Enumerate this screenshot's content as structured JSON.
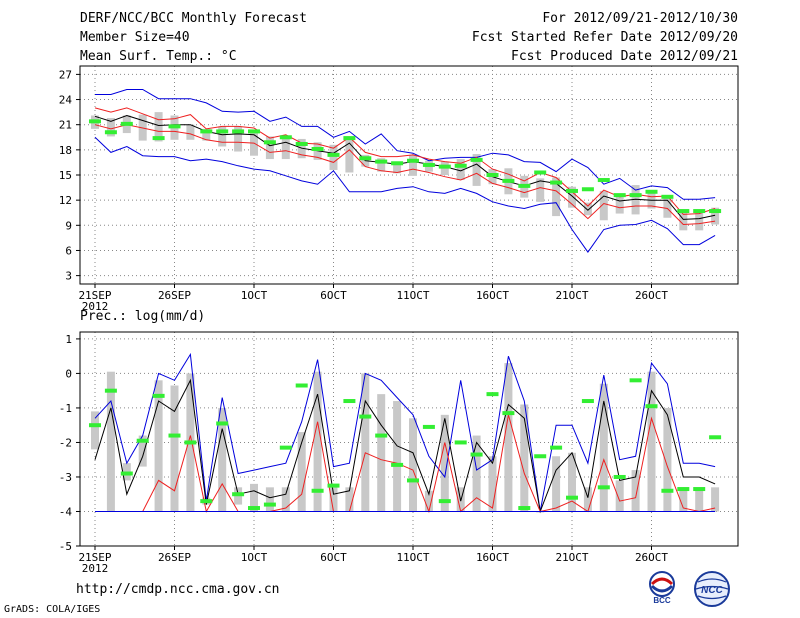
{
  "header": {
    "title": "DERF/NCC/BCC Monthly Forecast",
    "member_size": "Member Size=40",
    "variable": "Mean Surf. Temp.: °C",
    "period": "For 2012/09/21-2012/10/30",
    "start_date": "Fcst Started Refer Date 2012/09/20",
    "produced_date": "Fcst Produced Date 2012/09/21"
  },
  "footer": {
    "url": "http://cmdp.ncc.cma.gov.cn",
    "credit": "GrADS: COLA/IGES",
    "logo_bcc": "BCC",
    "logo_ncc": "NCC"
  },
  "colors": {
    "bar": "#c8c8c8",
    "envelope": "#0000dd",
    "spread": "#ee2020",
    "mean": "#000000",
    "obs": "#33ee33",
    "grid": "#888888"
  },
  "chart_data": [
    {
      "type": "line",
      "title": "Mean Surf. Temp.: °C",
      "x_ticks": [
        "21SEP",
        "26SEP",
        "1OCT",
        "6OCT",
        "11OCT",
        "16OCT",
        "21OCT",
        "26OCT"
      ],
      "x_year": "2012",
      "y_ticks": [
        3,
        6,
        9,
        12,
        15,
        18,
        21,
        24,
        27
      ],
      "ylim": [
        2,
        28
      ],
      "days": 40,
      "series": [
        {
          "name": "max",
          "values": [
            24.6,
            24.6,
            25.2,
            25.2,
            24.1,
            24.1,
            24.1,
            23.6,
            22.6,
            22.5,
            22.6,
            21.4,
            21.9,
            20.8,
            20.8,
            19.5,
            20.2,
            18.7,
            19.9,
            17.9,
            17.6,
            16.7,
            17.0,
            17.1,
            17.1,
            17.6,
            17.4,
            16.6,
            16.5,
            15.4,
            16.9,
            15.9,
            13.9,
            14.6,
            13.2,
            13.7,
            13.5,
            12.1,
            12.1,
            12.3
          ]
        },
        {
          "name": "p80",
          "values": [
            23.0,
            22.5,
            23.0,
            22.3,
            21.6,
            21.7,
            22.2,
            20.5,
            20.8,
            20.8,
            20.6,
            19.4,
            19.8,
            18.8,
            18.7,
            18.2,
            19.5,
            17.7,
            17.2,
            17.2,
            17.4,
            16.9,
            16.6,
            16.4,
            17.1,
            15.7,
            15.1,
            14.3,
            15.3,
            14.7,
            13.0,
            11.3,
            13.2,
            12.4,
            12.7,
            12.4,
            12.5,
            10.3,
            10.4,
            11.0
          ]
        },
        {
          "name": "mean",
          "values": [
            22.0,
            21.4,
            22.1,
            21.5,
            20.9,
            21.0,
            21.0,
            20.2,
            19.8,
            19.9,
            19.8,
            18.5,
            18.9,
            18.2,
            17.9,
            17.6,
            18.8,
            16.7,
            16.5,
            16.3,
            16.6,
            16.3,
            16.0,
            15.5,
            16.3,
            14.8,
            14.2,
            13.7,
            14.3,
            14.0,
            12.5,
            10.8,
            12.5,
            11.9,
            12.1,
            12.0,
            12.0,
            9.7,
            9.8,
            10.2
          ]
        },
        {
          "name": "p20",
          "values": [
            21.0,
            20.5,
            21.0,
            20.6,
            20.2,
            20.2,
            19.9,
            19.2,
            18.9,
            18.9,
            18.8,
            17.7,
            17.9,
            17.4,
            17.1,
            16.5,
            18.0,
            16.0,
            15.5,
            15.3,
            15.7,
            15.3,
            14.8,
            14.4,
            15.2,
            14.0,
            13.5,
            12.9,
            13.5,
            13.1,
            11.5,
            9.8,
            11.6,
            11.1,
            11.3,
            11.3,
            11.0,
            9.1,
            9.2,
            9.5
          ]
        },
        {
          "name": "min",
          "values": [
            19.5,
            17.7,
            18.4,
            17.3,
            17.2,
            17.2,
            16.7,
            16.9,
            16.6,
            16.1,
            15.7,
            15.5,
            14.9,
            14.3,
            13.9,
            15.5,
            13.0,
            13.0,
            13.0,
            13.4,
            13.6,
            13.0,
            12.8,
            13.4,
            12.8,
            11.8,
            11.3,
            11.0,
            11.5,
            11.7,
            8.5,
            5.8,
            8.5,
            9.0,
            9.1,
            9.6,
            8.6,
            6.7,
            6.7,
            7.8
          ]
        }
      ],
      "bars_low": [
        20.5,
        19.6,
        20.0,
        19.1,
        19.0,
        19.2,
        19.2,
        19.1,
        18.4,
        17.8,
        17.3,
        16.9,
        16.9,
        17.0,
        16.8,
        15.6,
        15.3,
        16.0,
        15.4,
        15.2,
        14.9,
        15.4,
        15.0,
        14.4,
        13.7,
        13.9,
        12.7,
        12.3,
        11.8,
        10.1,
        11.1,
        10.2,
        9.6,
        10.4,
        10.3,
        11.0,
        9.9,
        8.4,
        8.4,
        9.1
      ],
      "bars_high": [
        22.1,
        21.8,
        22.1,
        22.2,
        22.5,
        22.1,
        21.0,
        20.5,
        20.8,
        20.8,
        20.2,
        19.6,
        19.5,
        19.3,
        18.9,
        18.6,
        19.6,
        17.4,
        17.0,
        16.6,
        17.4,
        16.7,
        16.6,
        16.9,
        17.5,
        15.7,
        15.8,
        14.9,
        14.6,
        14.7,
        13.6,
        11.7,
        13.1,
        12.5,
        13.8,
        13.2,
        12.2,
        10.9,
        10.8,
        11.1
      ],
      "obs": [
        21.4,
        20.1,
        21.1,
        null,
        19.4,
        20.8,
        null,
        20.2,
        20.2,
        20.2,
        20.2,
        18.9,
        19.5,
        18.7,
        18.1,
        17.4,
        19.4,
        17.0,
        16.6,
        16.4,
        16.7,
        16.2,
        16.0,
        16.1,
        16.8,
        15.0,
        14.3,
        13.7,
        15.3,
        14.1,
        13.1,
        13.3,
        14.4,
        12.6,
        12.6,
        13.0,
        12.4,
        10.7,
        10.7,
        10.7
      ]
    },
    {
      "type": "line",
      "title": "Prec.: log(mm/d)",
      "x_ticks": [
        "21SEP",
        "26SEP",
        "1OCT",
        "6OCT",
        "11OCT",
        "16OCT",
        "21OCT",
        "26OCT"
      ],
      "x_year": "2012",
      "y_ticks": [
        -5,
        -4,
        -3,
        -2,
        -1,
        0,
        1
      ],
      "ylim": [
        -5,
        1.2
      ],
      "days": 40,
      "series": [
        {
          "name": "max",
          "values": [
            -1.3,
            -0.8,
            -2.6,
            -1.8,
            0.0,
            -0.2,
            0.55,
            -3.7,
            -0.7,
            -2.9,
            -2.8,
            -2.7,
            -2.6,
            -1.4,
            0.4,
            -2.7,
            -2.6,
            0.0,
            -0.2,
            -0.7,
            -1.2,
            -2.4,
            -3.0,
            -0.2,
            -2.8,
            -2.5,
            0.5,
            -0.8,
            -4.0,
            -1.5,
            -1.5,
            -2.6,
            -0.05,
            -2.5,
            -2.4,
            0.3,
            -0.3,
            -2.6,
            -2.6,
            -2.7
          ]
        },
        {
          "name": "mean",
          "values": [
            -2.5,
            -1.0,
            -3.5,
            -2.4,
            -0.8,
            -1.1,
            -0.2,
            -3.8,
            -1.6,
            -3.5,
            -3.4,
            -3.6,
            -3.5,
            -2.0,
            -0.6,
            -3.5,
            -3.4,
            -0.8,
            -1.5,
            -2.1,
            -2.3,
            -3.5,
            -1.3,
            -3.7,
            -2.0,
            -2.6,
            -0.9,
            -1.3,
            -4.0,
            -2.8,
            -2.3,
            -3.6,
            -0.8,
            -3.1,
            -3.0,
            -0.5,
            -1.2,
            -3.0,
            -3.0,
            -3.2
          ]
        },
        {
          "name": "spread",
          "values": [
            -4.0,
            -4.0,
            -4.0,
            -4.0,
            -3.1,
            -3.4,
            -1.8,
            -4.0,
            -3.2,
            -4.0,
            -4.0,
            -4.0,
            -3.9,
            -3.5,
            -1.4,
            -4.0,
            -4.0,
            -2.3,
            -2.5,
            -2.6,
            -2.8,
            -4.0,
            -2.0,
            -4.0,
            -3.6,
            -3.9,
            -1.2,
            -2.9,
            -4.0,
            -3.9,
            -3.7,
            -4.0,
            -2.5,
            -3.7,
            -3.6,
            -1.3,
            -2.7,
            -3.9,
            -4.0,
            -3.9
          ]
        },
        {
          "name": "min",
          "values": [
            -4.0,
            -4.0,
            -4.0,
            -4.0,
            -4.0,
            -4.0,
            -4.0,
            -4.0,
            -4.0,
            -4.0,
            -4.0,
            -4.0,
            -4.0,
            -4.0,
            -4.0,
            -4.0,
            -4.0,
            -4.0,
            -4.0,
            -4.0,
            -4.0,
            -4.0,
            -4.0,
            -4.0,
            -4.0,
            -4.0,
            -4.0,
            -4.0,
            -4.0,
            -4.0,
            -4.0,
            -4.0,
            -4.0,
            -4.0,
            -4.0,
            -4.0,
            -4.0,
            -4.0,
            -4.0,
            -4.0
          ]
        }
      ],
      "bars_low": [
        -2.2,
        -4.0,
        -3.1,
        -2.7,
        -4.0,
        -4.0,
        -4.0,
        -3.8,
        -4.0,
        -3.8,
        -4.0,
        -4.0,
        -4.0,
        -4.0,
        -4.0,
        -4.0,
        -4.0,
        -4.0,
        -4.0,
        -4.0,
        -4.0,
        -4.0,
        -4.0,
        -4.0,
        -4.0,
        -4.0,
        -4.0,
        -4.0,
        -4.0,
        -4.0,
        -4.0,
        -4.0,
        -4.0,
        -4.0,
        -4.0,
        -4.0,
        -4.0,
        -4.0,
        -4.0,
        -4.0
      ],
      "bars_high": [
        -1.1,
        0.05,
        -2.6,
        -1.8,
        -0.2,
        -0.35,
        0.0,
        -3.6,
        -1.0,
        -3.3,
        -3.2,
        -3.3,
        -3.3,
        -1.7,
        0.05,
        -3.2,
        -3.3,
        0.0,
        -0.6,
        -0.8,
        -1.3,
        -3.4,
        -1.2,
        -3.3,
        -1.8,
        -2.4,
        0.3,
        -0.9,
        -4.0,
        -2.4,
        -2.3,
        -3.3,
        -0.3,
        -3.1,
        -2.8,
        0.05,
        -1.0,
        -3.3,
        -3.3,
        -3.3
      ],
      "obs": [
        -1.5,
        -0.5,
        -2.9,
        -1.95,
        -0.65,
        -1.8,
        -2.0,
        -3.7,
        -1.45,
        -3.5,
        -3.9,
        -3.8,
        -2.15,
        -0.35,
        -3.4,
        -3.25,
        -0.8,
        -1.25,
        -1.8,
        -2.65,
        -3.1,
        -1.55,
        -3.7,
        -2.0,
        -2.35,
        -0.6,
        -1.15,
        -3.9,
        -2.4,
        -2.15,
        -3.6,
        -0.8,
        -3.3,
        -3.0,
        -0.2,
        -0.95,
        -3.4,
        -3.35,
        -3.35,
        -1.85
      ]
    }
  ]
}
